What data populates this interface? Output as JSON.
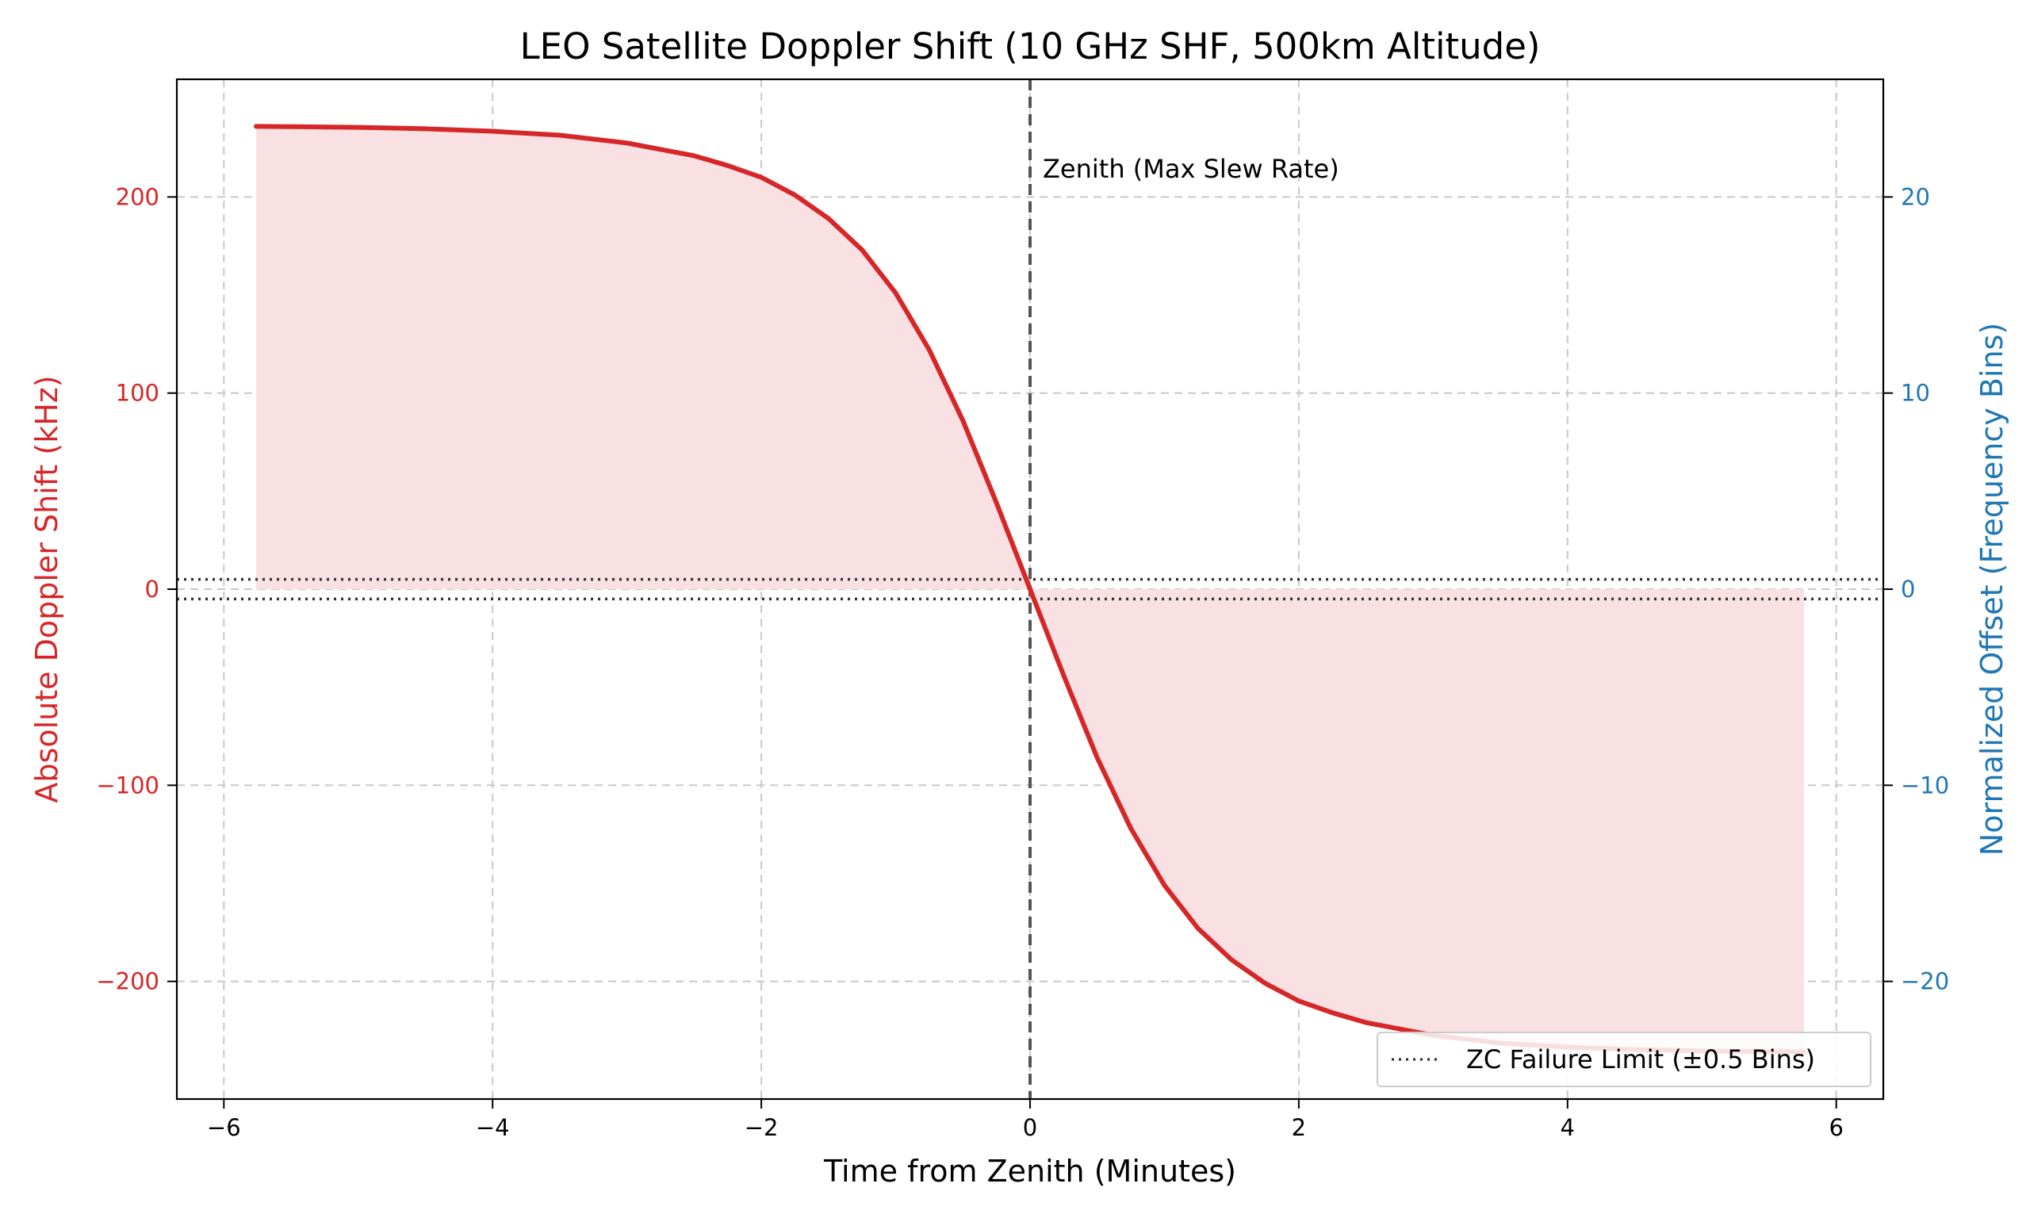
{
  "chart_data": {
    "type": "line",
    "title": "LEO Satellite Doppler Shift (10 GHz SHF, 500km Altitude)",
    "xlabel": "Time from Zenith (Minutes)",
    "ylabel": "Absolute Doppler Shift (kHz)",
    "y2label": "Normalized Offset (Frequency Bins)",
    "xlim": [
      -6.35,
      6.35
    ],
    "ylim": [
      -260,
      260
    ],
    "y2lim": [
      -26,
      26
    ],
    "x_ticks": [
      -6,
      -4,
      -2,
      0,
      2,
      4,
      6
    ],
    "x_tick_labels": [
      "−6",
      "−4",
      "−2",
      "0",
      "2",
      "4",
      "6"
    ],
    "y_ticks": [
      -200,
      -100,
      0,
      100,
      200
    ],
    "y_tick_labels": [
      "−200",
      "−100",
      "0",
      "100",
      "200"
    ],
    "y2_ticks": [
      -20,
      -10,
      0,
      10,
      20
    ],
    "y2_tick_labels": [
      "−20",
      "−10",
      "0",
      "10",
      "20"
    ],
    "grid": true,
    "series": [
      {
        "name": "",
        "color": "#d62728",
        "fill": "#f9e0e3",
        "x": [
          -5.76,
          -5.0,
          -4.5,
          -4.0,
          -3.5,
          -3.0,
          -2.5,
          -2.25,
          -2.0,
          -1.75,
          -1.5,
          -1.25,
          -1.0,
          -0.75,
          -0.5,
          -0.25,
          0.0,
          0.25,
          0.5,
          0.75,
          1.0,
          1.25,
          1.5,
          1.75,
          2.0,
          2.25,
          2.5,
          3.0,
          3.5,
          4.0,
          4.5,
          5.0,
          5.76
        ],
        "y": [
          236,
          235.5,
          234.8,
          233.5,
          231.5,
          227.5,
          221,
          216,
          210,
          201,
          189,
          173,
          151,
          122,
          86,
          44,
          0,
          -44,
          -86,
          -122,
          -151,
          -173,
          -189,
          -201,
          -210,
          -216,
          -221,
          -227.5,
          -231.5,
          -233.5,
          -234.8,
          -235.5,
          -236
        ]
      }
    ],
    "reference_lines": {
      "zenith_x": 0,
      "zenith_color": "#555555",
      "zc_limit_kHz": [
        5,
        -5
      ],
      "zc_color": "#333333"
    },
    "annotation": "Zenith (Max Slew Rate)",
    "legend": {
      "position": "bottom-right",
      "entries": [
        "ZC Failure Limit (±0.5 Bins)"
      ]
    },
    "colors": {
      "left_axis": "#d62728",
      "right_axis": "#1f77b4",
      "grid": "#c8c8c8",
      "text": "#000000"
    }
  }
}
